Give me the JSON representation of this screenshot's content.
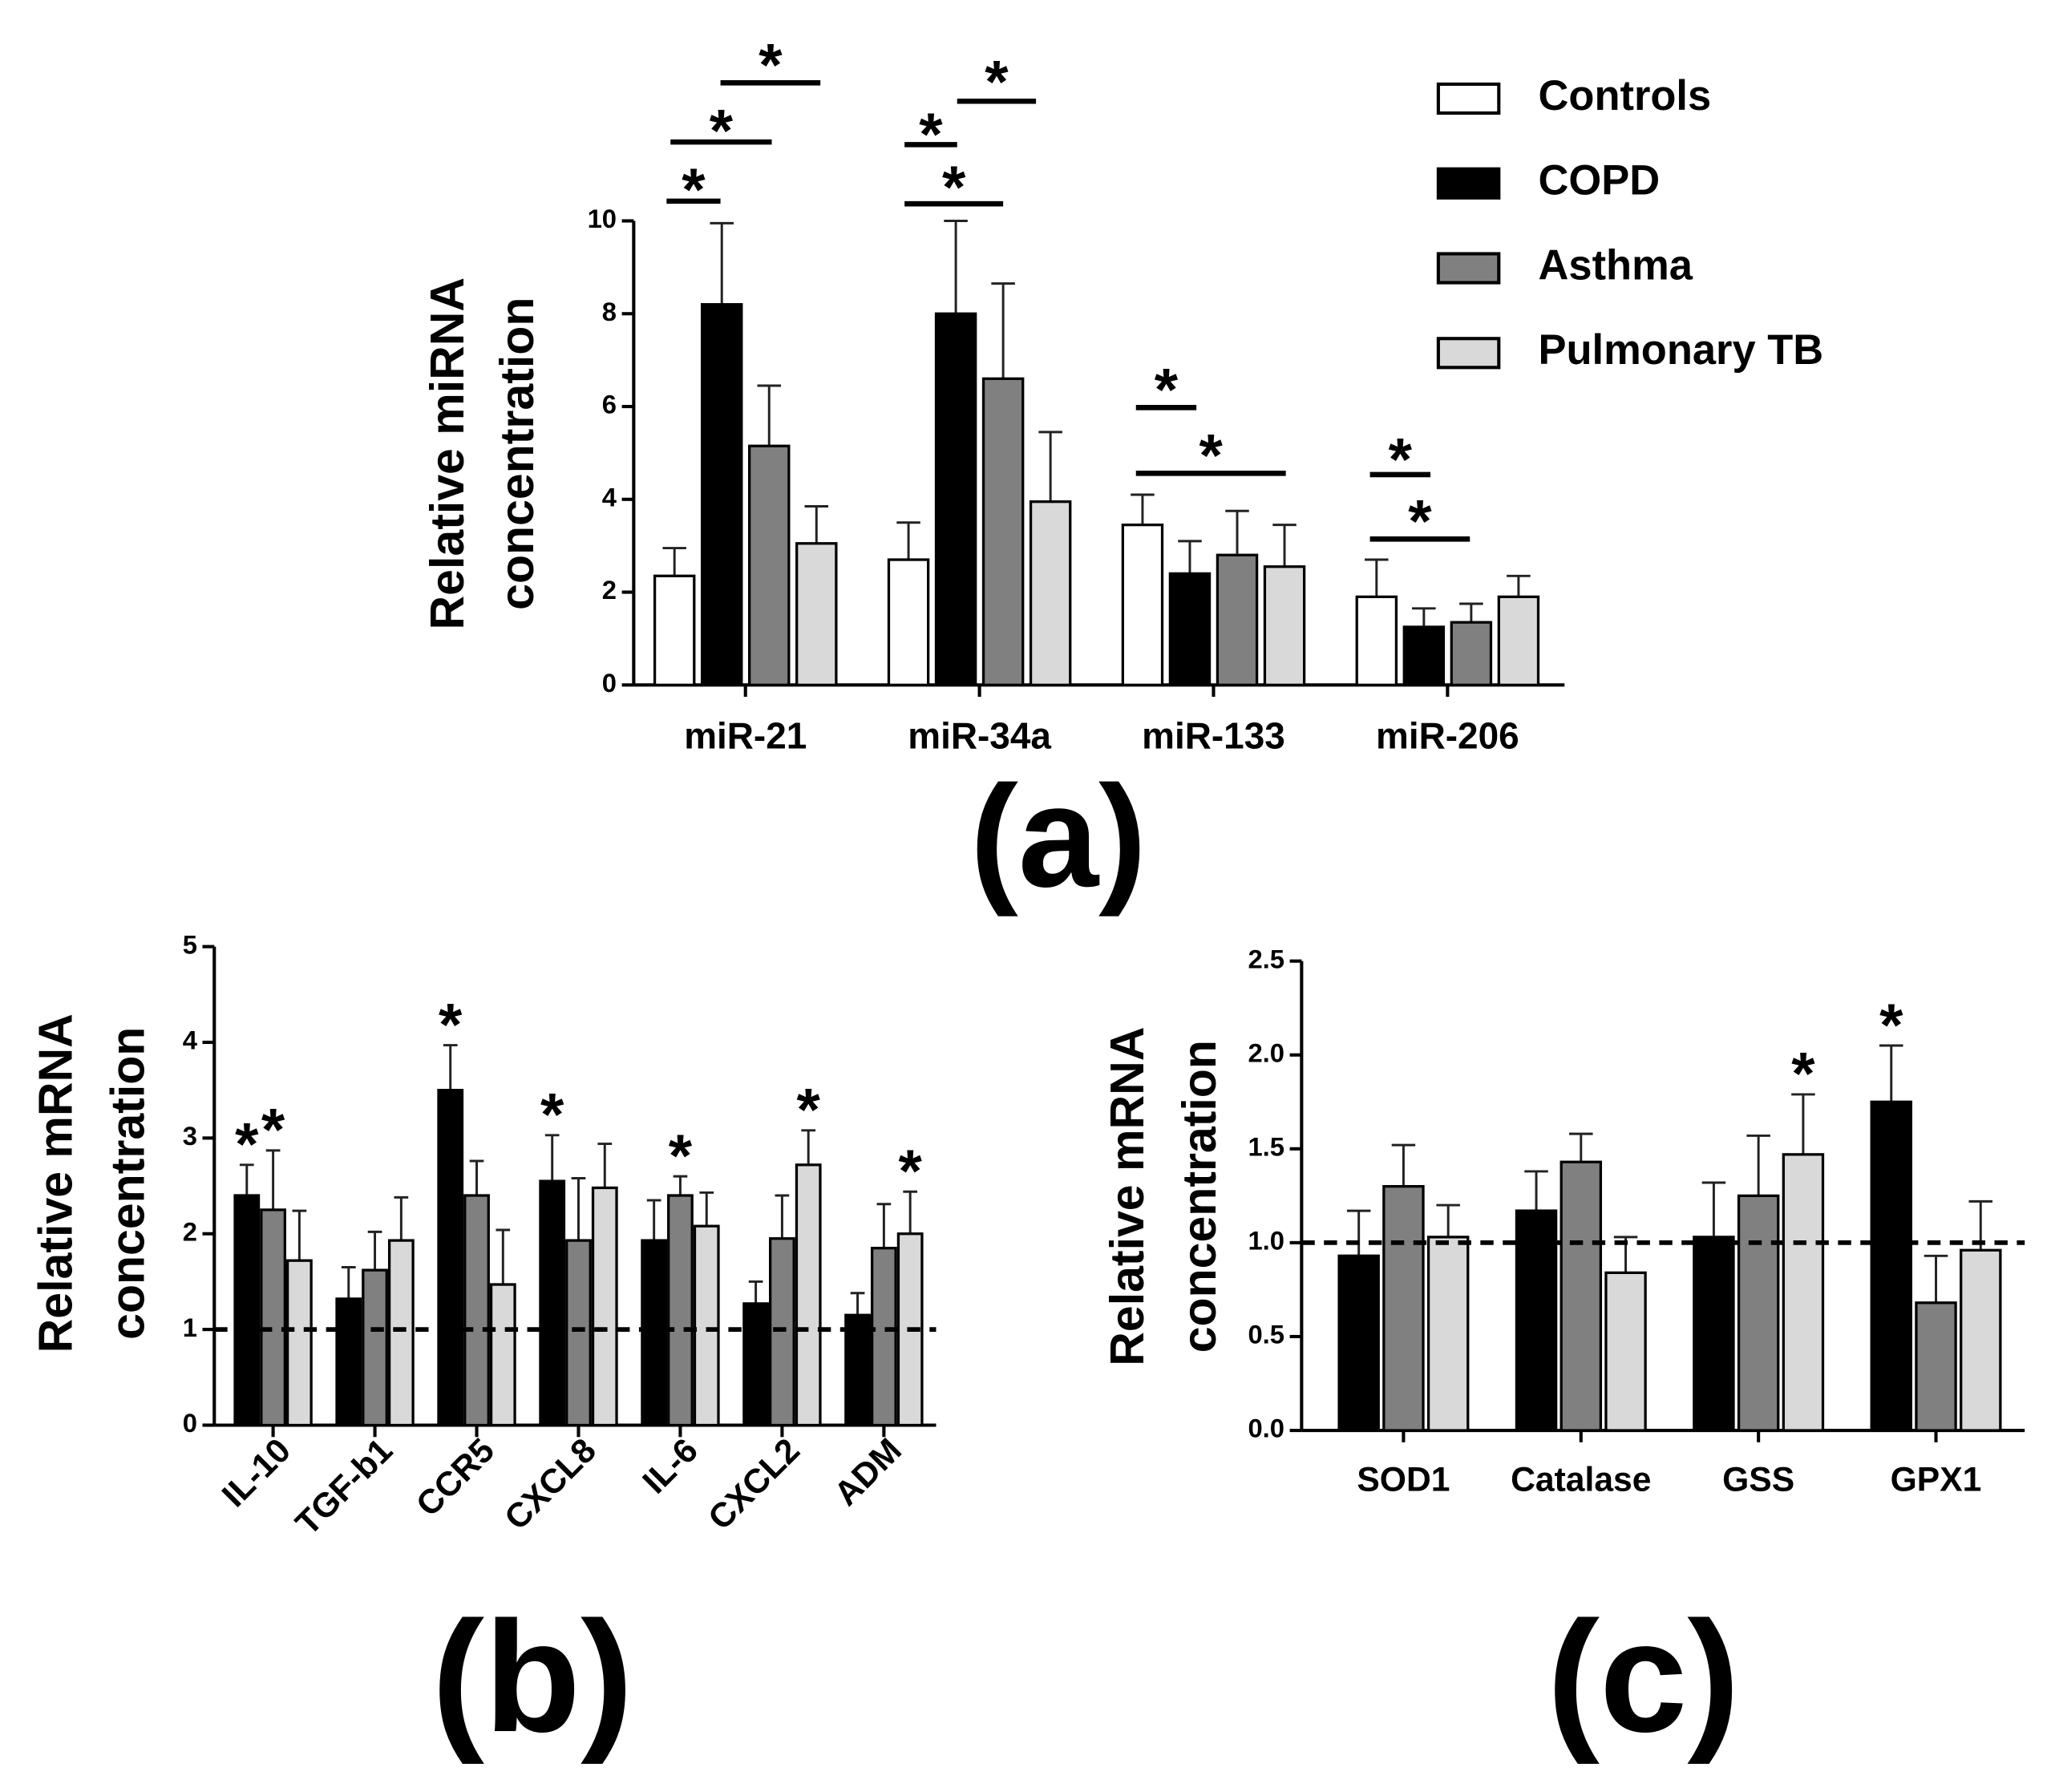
{
  "chart_data": [
    {
      "type": "bar",
      "label": "(a)",
      "ylabel": [
        "Relative miRNA",
        "concentration"
      ],
      "categories": [
        "miR-21",
        "miR-34a",
        "miR-133",
        "miR-206"
      ],
      "series": [
        {
          "name": "Controls",
          "color": "#ffffff",
          "values": [
            2.35,
            2.7,
            3.45,
            1.9
          ],
          "errors": [
            0.6,
            0.8,
            0.65,
            0.8
          ]
        },
        {
          "name": "COPD",
          "color": "#000000",
          "values": [
            8.2,
            8.0,
            2.4,
            1.25
          ],
          "errors": [
            1.75,
            2.0,
            0.7,
            0.4
          ]
        },
        {
          "name": "Asthma",
          "color": "#808080",
          "values": [
            5.15,
            6.6,
            2.8,
            1.35
          ],
          "errors": [
            1.3,
            2.05,
            0.95,
            0.4
          ]
        },
        {
          "name": "Pulmonary TB",
          "color": "#d9d9d9",
          "values": [
            3.05,
            3.95,
            2.55,
            1.9
          ],
          "errors": [
            0.8,
            1.5,
            0.9,
            0.45
          ]
        }
      ],
      "ylim": [
        0,
        10
      ],
      "yticks": [
        0,
        2,
        4,
        6,
        8,
        10
      ],
      "legend": "top-right",
      "annotations": [
        "*",
        "*",
        "*",
        "*",
        "*",
        "*",
        "*",
        "*",
        "*",
        "*"
      ]
    },
    {
      "type": "bar",
      "label": "(b)",
      "ylabel": [
        "Relative mRNA",
        "concentration"
      ],
      "categories": [
        "IL-10",
        "TGF-b1",
        "CCR5",
        "CXCL8",
        "IL-6",
        "CXCL2",
        "ADM"
      ],
      "series": [
        {
          "color": "#000000",
          "values": [
            2.4,
            1.32,
            3.5,
            2.55,
            1.93,
            1.27,
            1.15
          ],
          "errors": [
            0.32,
            0.33,
            0.47,
            0.48,
            0.42,
            0.23,
            0.23
          ]
        },
        {
          "color": "#808080",
          "values": [
            2.25,
            1.62,
            2.4,
            1.93,
            2.4,
            1.95,
            1.85
          ],
          "errors": [
            0.62,
            0.4,
            0.36,
            0.65,
            0.2,
            0.45,
            0.46
          ]
        },
        {
          "color": "#d9d9d9",
          "values": [
            1.72,
            1.93,
            1.47,
            2.48,
            2.08,
            2.72,
            2.0
          ],
          "errors": [
            0.52,
            0.45,
            0.57,
            0.46,
            0.35,
            0.36,
            0.44
          ]
        }
      ],
      "ylim": [
        0,
        5
      ],
      "yticks": [
        0,
        1,
        2,
        3,
        4,
        5
      ],
      "reference_line": 1,
      "annotations": [
        "*",
        "*",
        "*",
        "*",
        "*",
        "*",
        "*"
      ]
    },
    {
      "type": "bar",
      "label": "(c)",
      "ylabel": [
        "Relative mRNA",
        "concentration"
      ],
      "categories": [
        "SOD1",
        "Catalase",
        "GSS",
        "GPX1"
      ],
      "series": [
        {
          "color": "#000000",
          "values": [
            0.93,
            1.17,
            1.03,
            1.75
          ],
          "errors": [
            0.24,
            0.21,
            0.29,
            0.3
          ]
        },
        {
          "color": "#808080",
          "values": [
            1.3,
            1.43,
            1.25,
            0.68
          ],
          "errors": [
            0.22,
            0.15,
            0.32,
            0.25
          ]
        },
        {
          "color": "#d9d9d9",
          "values": [
            1.03,
            0.84,
            1.47,
            0.96
          ],
          "errors": [
            0.17,
            0.19,
            0.32,
            0.26
          ]
        }
      ],
      "ylim": [
        0,
        2.5
      ],
      "yticks": [
        {
          "value": 0,
          "label": "0.0"
        },
        {
          "value": 0.5,
          "label": "0.5"
        },
        {
          "value": 1,
          "label": "1.0"
        },
        {
          "value": 1.5,
          "label": "1.5"
        },
        {
          "value": 2,
          "label": "2.0"
        },
        {
          "value": 2.5,
          "label": "2.5"
        }
      ],
      "reference_line": 1,
      "annotations": [
        "*",
        "*"
      ]
    }
  ]
}
